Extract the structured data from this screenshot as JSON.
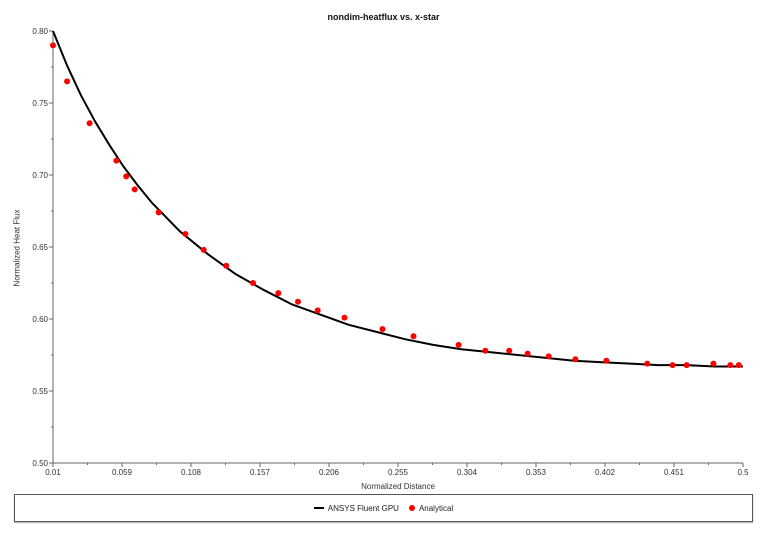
{
  "chart_data": {
    "type": "line",
    "title": "nondim-heatflux vs. x-star",
    "xlabel": "Normalized Distance",
    "ylabel": "Normalized Heat Flux",
    "xlim": [
      0.01,
      0.5
    ],
    "ylim": [
      0.5,
      0.8
    ],
    "x_ticks": [
      "0.01",
      "0.059",
      "0.108",
      "0.157",
      "0.206",
      "0.255",
      "0.304",
      "0.353",
      "0.402",
      "0.451",
      "0.5"
    ],
    "y_ticks": [
      "0.50",
      "0.55",
      "0.60",
      "0.65",
      "0.70",
      "0.75",
      "0.80"
    ],
    "grid": false,
    "legend_position": "bottom",
    "series": [
      {
        "name": "ANSYS Fluent GPU",
        "type": "line",
        "color": "#000000",
        "x": [
          0.01,
          0.02,
          0.03,
          0.04,
          0.05,
          0.06,
          0.07,
          0.08,
          0.09,
          0.1,
          0.12,
          0.14,
          0.16,
          0.18,
          0.2,
          0.22,
          0.24,
          0.26,
          0.28,
          0.3,
          0.32,
          0.34,
          0.36,
          0.38,
          0.4,
          0.42,
          0.44,
          0.46,
          0.48,
          0.5
        ],
        "y": [
          0.8,
          0.776,
          0.755,
          0.737,
          0.721,
          0.706,
          0.693,
          0.681,
          0.671,
          0.661,
          0.645,
          0.631,
          0.62,
          0.61,
          0.603,
          0.596,
          0.591,
          0.586,
          0.582,
          0.579,
          0.577,
          0.575,
          0.573,
          0.571,
          0.57,
          0.569,
          0.568,
          0.568,
          0.567,
          0.567
        ]
      },
      {
        "name": "Analytical",
        "type": "scatter",
        "color": "#ff0000",
        "x": [
          0.01,
          0.02,
          0.036,
          0.055,
          0.062,
          0.068,
          0.085,
          0.104,
          0.117,
          0.133,
          0.152,
          0.17,
          0.184,
          0.198,
          0.217,
          0.244,
          0.266,
          0.298,
          0.317,
          0.334,
          0.347,
          0.362,
          0.381,
          0.403,
          0.432,
          0.45,
          0.46,
          0.479,
          0.491,
          0.497
        ],
        "y": [
          0.79,
          0.765,
          0.736,
          0.71,
          0.699,
          0.69,
          0.674,
          0.659,
          0.648,
          0.637,
          0.625,
          0.618,
          0.612,
          0.606,
          0.601,
          0.593,
          0.588,
          0.582,
          0.578,
          0.578,
          0.576,
          0.574,
          0.572,
          0.571,
          0.569,
          0.568,
          0.568,
          0.569,
          0.568,
          0.568
        ]
      }
    ]
  },
  "legend": {
    "items": [
      {
        "label": "ANSYS Fluent GPU"
      },
      {
        "label": "Analytical"
      }
    ]
  }
}
